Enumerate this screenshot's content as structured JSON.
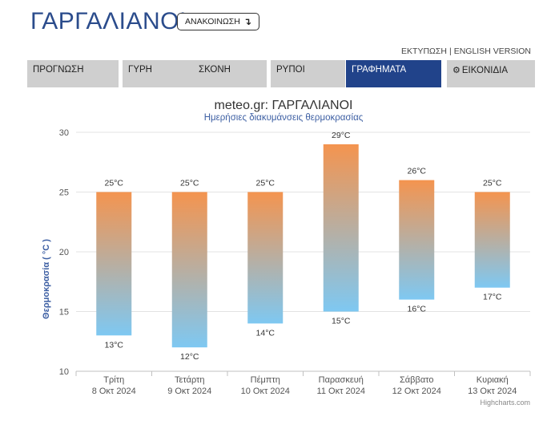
{
  "header": {
    "title": "ΓΑΡΓΑΛΙΑΝΟΙ",
    "announce_label": "ΑΝΑΚΟΙΝΩΣΗ",
    "announce_icon": "arrow-down-return-icon",
    "print_link": "ΕΚΤΥΠΩΣΗ",
    "separator": "|",
    "english_link": "ENGLISH VERSION"
  },
  "nav": {
    "tabs": [
      {
        "label": "ΠΡΟΓΝΩΣΗ",
        "active": false
      },
      {
        "label": "ΓΥΡΗ",
        "active": false
      },
      {
        "label": "ΣΚΟΝΗ",
        "active": false
      },
      {
        "label": "ΡΥΠΟΙ",
        "active": false
      },
      {
        "label": "ΓΡΑΦΗΜΑΤΑ",
        "active": true
      },
      {
        "label": "ΕΙΚΟΝΙΔΙΑ",
        "active": false,
        "icon": "gear-icon"
      }
    ],
    "active_color": "#21438a",
    "inactive_color": "#cfcfcf"
  },
  "chart_data": {
    "type": "bar",
    "title": "meteo.gr: ΓΑΡΓΑΛΙΑΝΟΙ",
    "subtitle": "Ημερήσιες διακυμάνσεις θερμοκρασίας",
    "ylabel": "Θερμοκρασία ( °C )",
    "xlabel": "",
    "ylim": [
      10,
      30
    ],
    "yticks": [
      10,
      15,
      20,
      25,
      30
    ],
    "grid": true,
    "categories": [
      {
        "day": "Τρίτη",
        "date": "8 Οκτ 2024"
      },
      {
        "day": "Τετάρτη",
        "date": "9 Οκτ 2024"
      },
      {
        "day": "Πέμπτη",
        "date": "10 Οκτ 2024"
      },
      {
        "day": "Παρασκευή",
        "date": "11 Οκτ 2024"
      },
      {
        "day": "Σάββατο",
        "date": "12 Οκτ 2024"
      },
      {
        "day": "Κυριακή",
        "date": "13 Οκτ 2024"
      }
    ],
    "series": [
      {
        "low": 13,
        "high": 25
      },
      {
        "low": 12,
        "high": 25
      },
      {
        "low": 14,
        "high": 25
      },
      {
        "low": 15,
        "high": 29
      },
      {
        "low": 16,
        "high": 26
      },
      {
        "low": 17,
        "high": 25
      }
    ],
    "unit": "°C",
    "gradient_top": "#f4944f",
    "gradient_bottom": "#7ec8f2",
    "credits": "Highcharts.com"
  }
}
